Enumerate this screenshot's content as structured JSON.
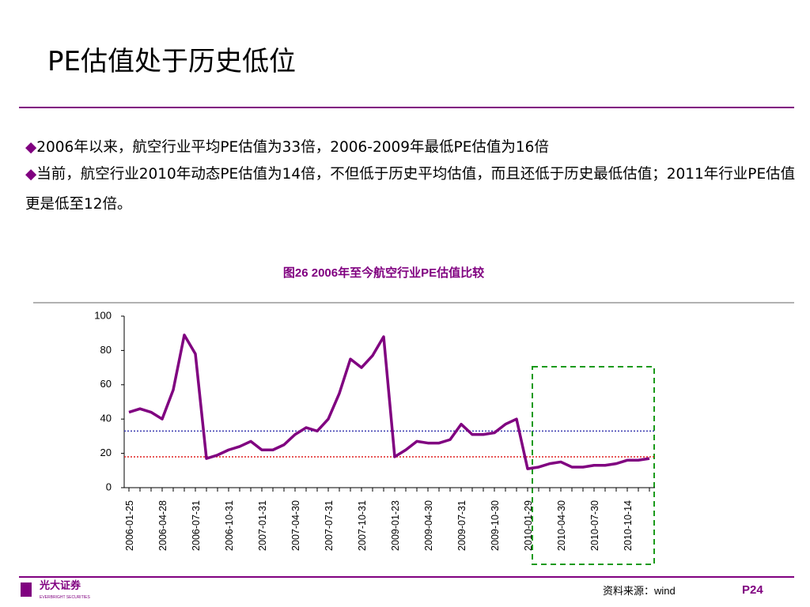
{
  "header": {
    "title": "PE估值处于历史低位"
  },
  "bullets": [
    "2006年以来，航空行业平均PE估值为33倍，2006-2009年最低PE估值为16倍",
    "当前，航空行业2010年动态PE估值为14倍，不但低于历史平均估值，而且还低于历史最低估值；2011年行业PE估值更是低至12倍。"
  ],
  "chart_data": {
    "type": "line",
    "title": "图26  2006年至今航空行业PE估值比较",
    "categories": [
      "2006-01-25",
      null,
      null,
      "2006-04-28",
      null,
      null,
      "2006-07-31",
      null,
      null,
      "2006-10-31",
      null,
      null,
      "2007-01-31",
      null,
      null,
      "2007-04-30",
      null,
      null,
      "2007-07-31",
      null,
      null,
      "2007-10-31",
      null,
      null,
      "2009-01-23",
      null,
      null,
      "2009-04-30",
      null,
      null,
      "2009-07-31",
      null,
      null,
      "2009-10-30",
      null,
      null,
      "2010-01-29",
      null,
      null,
      "2010-04-30",
      null,
      null,
      "2010-07-30",
      null,
      null,
      "2010-10-14",
      null,
      null
    ],
    "series": [
      {
        "color": "#800080",
        "values": [
          44,
          46,
          44,
          40,
          57,
          89,
          78,
          17,
          19,
          22,
          24,
          27,
          22,
          22,
          25,
          31,
          35,
          33,
          40,
          55,
          75,
          70,
          77,
          88,
          18,
          22,
          27,
          26,
          26,
          28,
          37,
          31,
          31,
          32,
          37,
          40,
          11,
          12,
          14,
          15,
          12,
          12,
          13,
          13,
          14,
          16,
          16,
          17
        ]
      }
    ],
    "reference_lines": [
      {
        "value": 33,
        "color": "#3a3ab0"
      },
      {
        "value": 18,
        "color": "#e02020"
      }
    ],
    "ylim": [
      0,
      100
    ],
    "yticks": [
      0,
      20,
      40,
      60,
      80,
      100
    ]
  },
  "footer": {
    "source": "资料来源：wind",
    "page": "P24",
    "logo": "光大证券",
    "logo_en": "EVERBRIGHT SECURITIES"
  }
}
